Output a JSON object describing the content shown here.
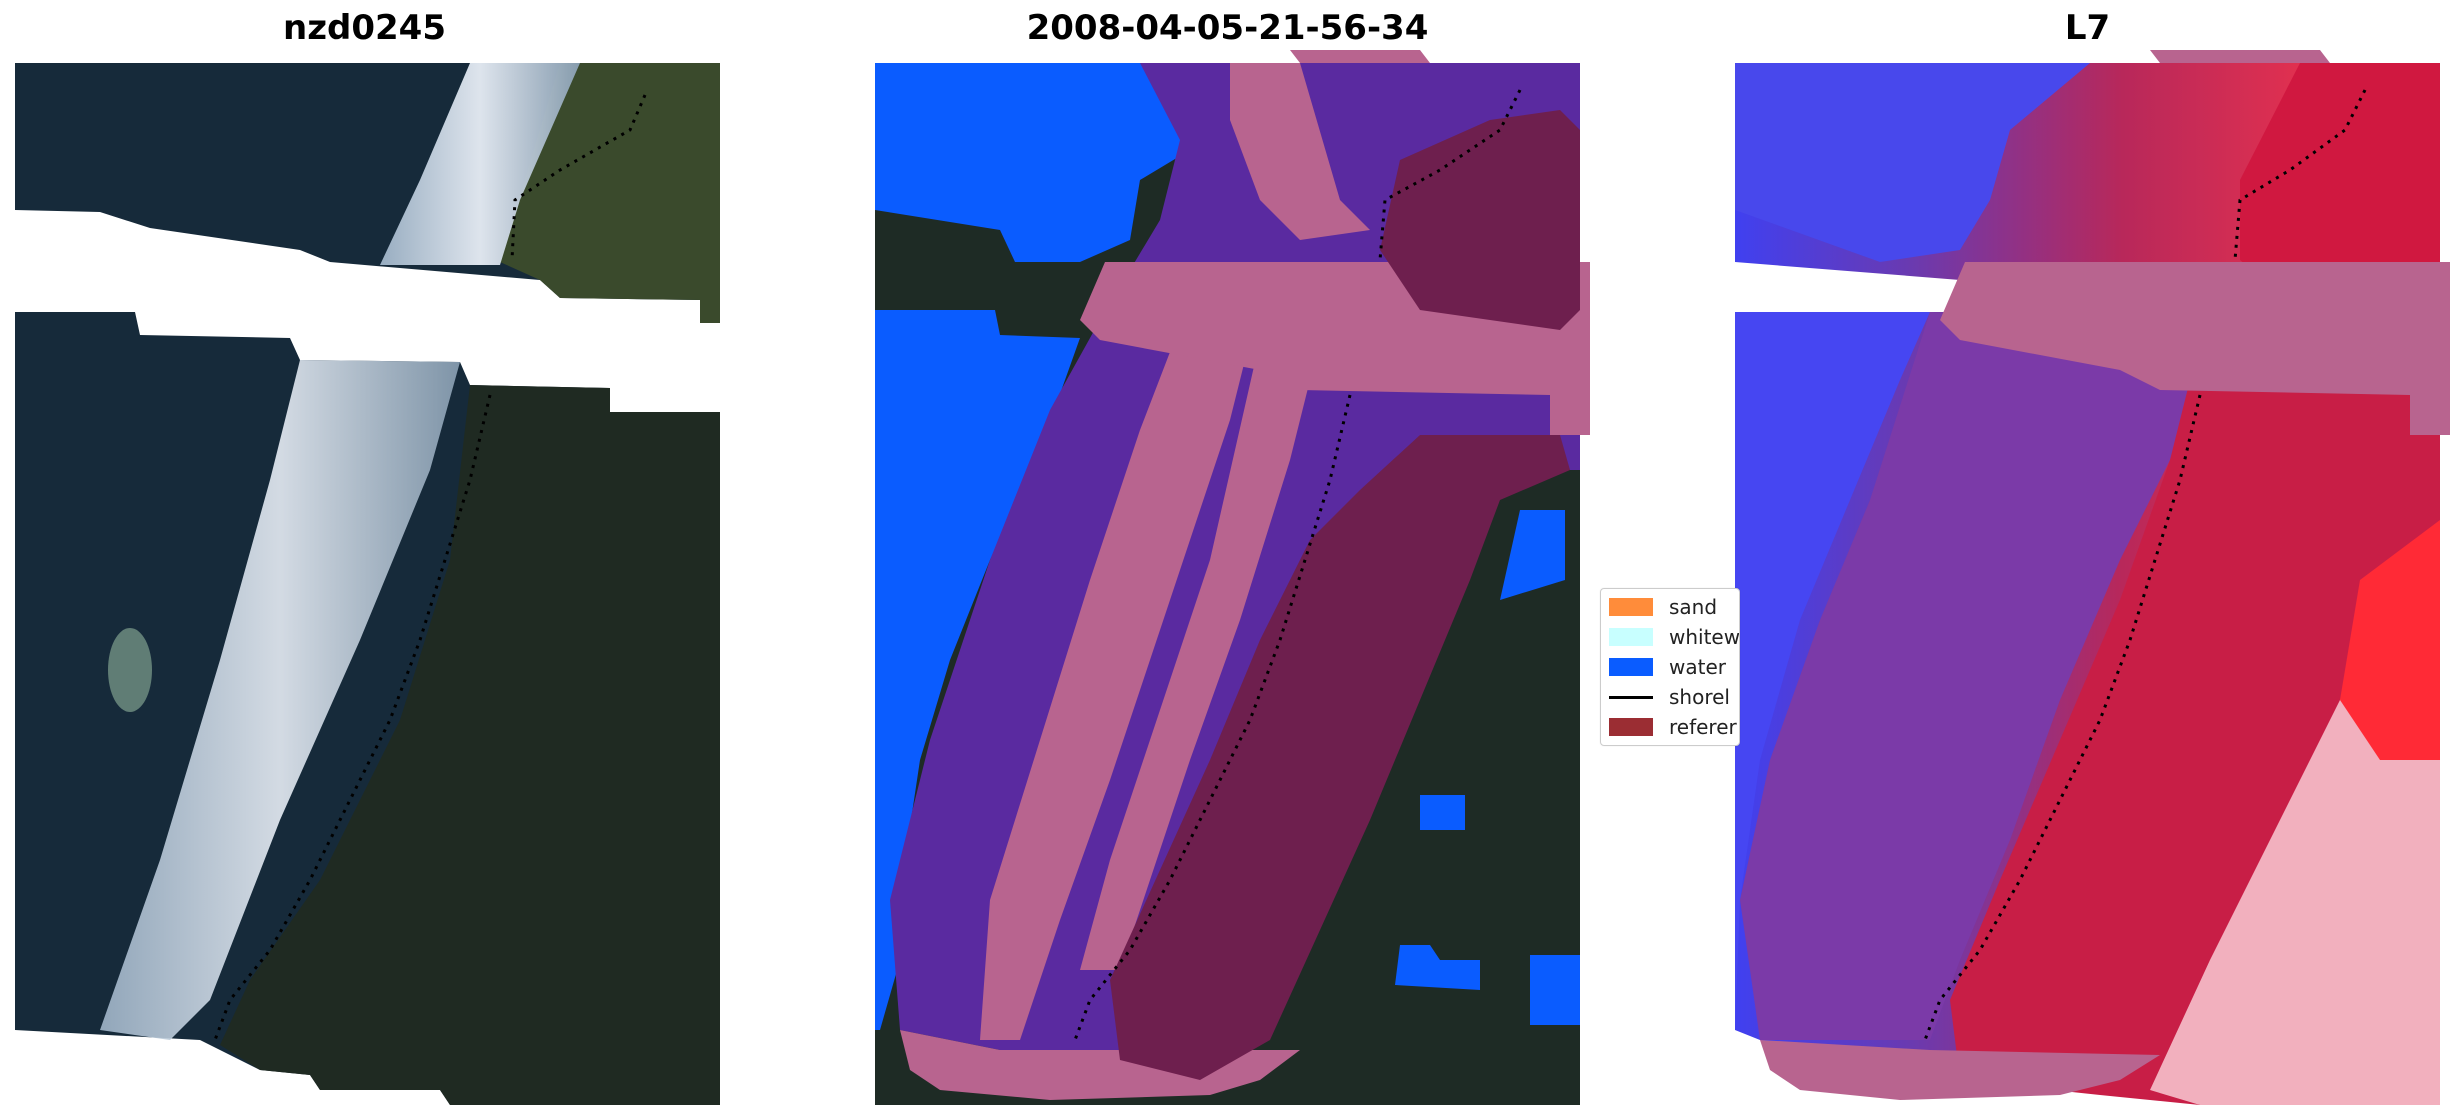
{
  "panels": {
    "left_title": "nzd0245",
    "middle_title": "2008-04-05-21-56-34",
    "right_title": "L7"
  },
  "legend": {
    "items": [
      {
        "label": "sand",
        "color": "#ff8c3a",
        "kind": "patch"
      },
      {
        "label": "whitew",
        "color": "#c8ffff",
        "kind": "patch"
      },
      {
        "label": "water",
        "color": "#0a5cff",
        "kind": "patch"
      },
      {
        "label": "shorel",
        "color": "#000000",
        "kind": "line"
      },
      {
        "label": "referer",
        "color": "#9b2d33",
        "kind": "patch"
      }
    ]
  },
  "colors": {
    "rgb_water": "#162a3a",
    "rgb_land": "#1f2a22",
    "rgb_land_green": "#4a5a32",
    "whitewater": "#cfdcea",
    "class_water": "#0a5cff",
    "class_purple": "#5a2aa0",
    "class_pink": "#b8648f",
    "class_maroon": "#6e1f4e",
    "l7_blue": "#4a4aff",
    "l7_purple": "#7b3aa8",
    "l7_red": "#c81e46",
    "l7_light": "#f4b4c0"
  }
}
